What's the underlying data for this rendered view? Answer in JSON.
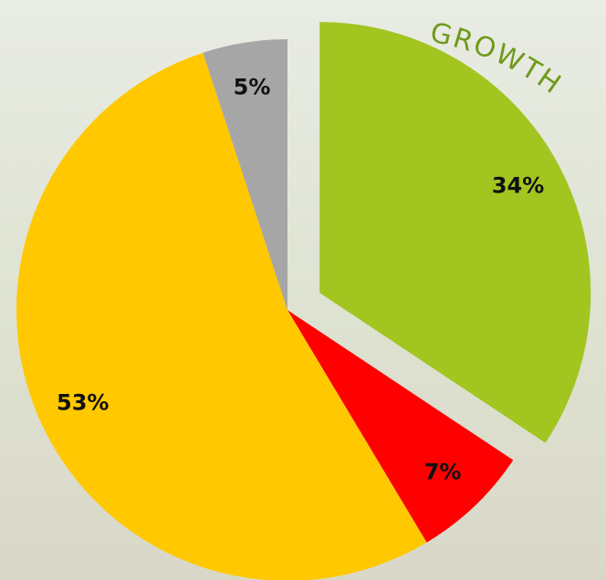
{
  "chart_data": {
    "type": "pie",
    "categories": [
      null,
      null,
      null,
      null
    ],
    "values": [
      34,
      7,
      53,
      5
    ],
    "value_labels": [
      "34%",
      "7%",
      "53%",
      "5%"
    ],
    "colors": [
      "#a2c520",
      "#ff0000",
      "#ffc800",
      "#a6a6a6"
    ],
    "exploded": [
      true,
      false,
      false,
      false
    ],
    "annotation": "GROWTH"
  }
}
